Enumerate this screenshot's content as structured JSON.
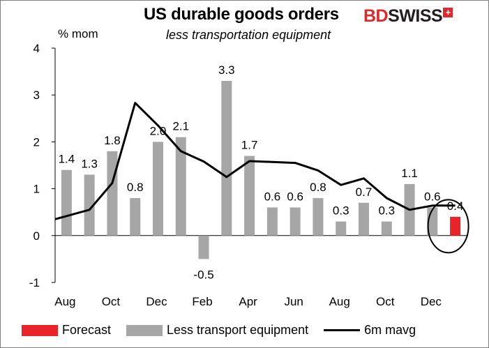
{
  "chart_data": {
    "type": "bar",
    "title": "US durable goods orders",
    "subtitle": "less transportation equipment",
    "ylabel": "% mom",
    "ylim": [
      -1,
      4
    ],
    "yticks": [
      "4",
      "3",
      "2",
      "1",
      "0",
      "-1"
    ],
    "x_tick_labels": [
      "Aug",
      "Oct",
      "Dec",
      "Feb",
      "Apr",
      "Jun",
      "Aug",
      "Oct",
      "Dec"
    ],
    "categories": [
      "Aug",
      "Sep",
      "Oct",
      "Nov",
      "Dec",
      "Jan",
      "Feb",
      "Mar",
      "Apr",
      "May",
      "Jun",
      "Jul",
      "Aug",
      "Sep",
      "Oct",
      "Nov",
      "Dec",
      "Jan"
    ],
    "series": [
      {
        "name": "Less transport equipment",
        "color": "#a6a6a6",
        "values": [
          1.4,
          1.3,
          1.8,
          0.8,
          2.0,
          2.1,
          -0.5,
          3.3,
          1.7,
          0.6,
          0.6,
          0.8,
          0.3,
          0.7,
          0.3,
          1.1,
          0.6,
          null
        ],
        "labels": [
          "1.4",
          "1.3",
          "1.8",
          "0.8",
          "2.0",
          "2.1",
          "-0.5",
          "3.3",
          "1.7",
          "0.6",
          "0.6",
          "0.8",
          "0.3",
          "0.7",
          "0.3",
          "1.1",
          "0.6",
          ""
        ]
      },
      {
        "name": "Forecast",
        "color": "#e8242a",
        "values": [
          null,
          null,
          null,
          null,
          null,
          null,
          null,
          null,
          null,
          null,
          null,
          null,
          null,
          null,
          null,
          null,
          null,
          0.4
        ],
        "labels": [
          "",
          "",
          "",
          "",
          "",
          "",
          "",
          "",
          "",
          "",
          "",
          "",
          "",
          "",
          "",
          "",
          "",
          "0.4"
        ]
      },
      {
        "name": "6m mavg",
        "type": "line",
        "color": "#000000",
        "values": [
          0.35,
          0.55,
          1.12,
          2.83,
          2.35,
          1.8,
          1.58,
          1.25,
          1.59,
          1.57,
          1.55,
          1.39,
          1.08,
          1.22,
          0.8,
          0.55,
          0.64,
          0.64
        ]
      }
    ],
    "legend_position": "bottom",
    "grid": false,
    "annotations": [
      "forecast circled"
    ]
  },
  "brand": {
    "bd": "BD",
    "swiss": "SWISS",
    "mark": "+"
  }
}
